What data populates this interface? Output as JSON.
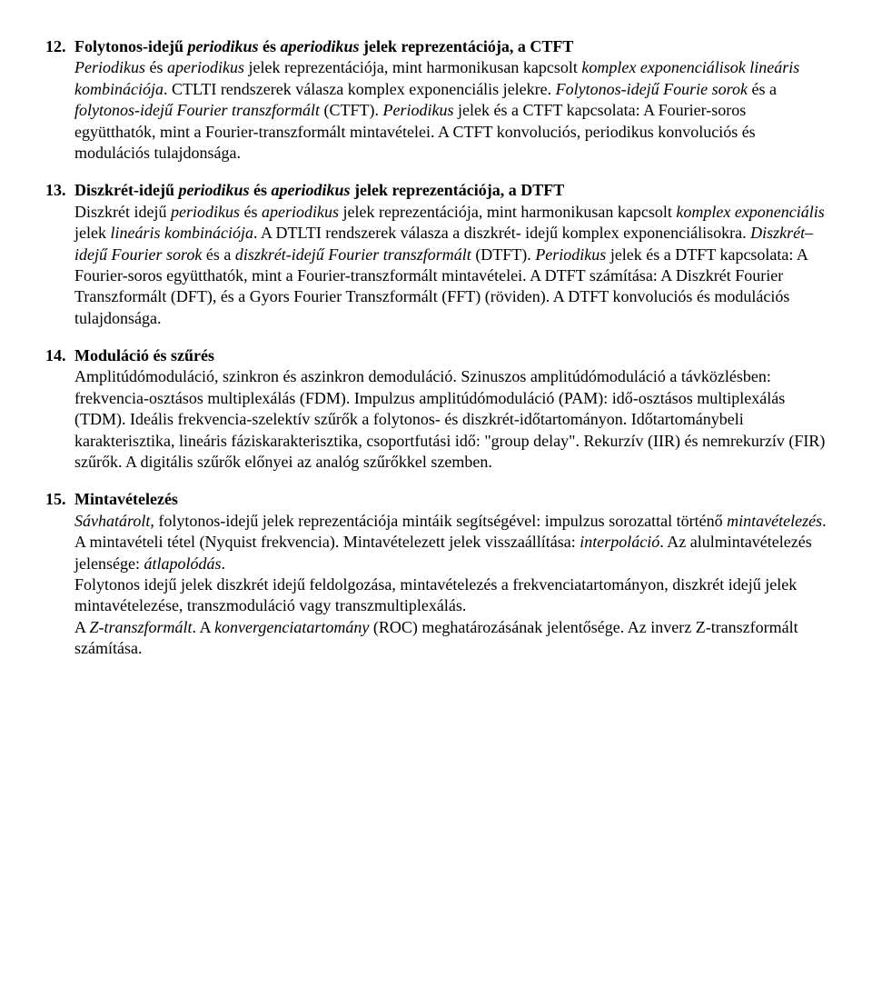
{
  "items": [
    {
      "num": "12.",
      "title_parts": [
        {
          "t": "Folytonos-idejű ",
          "b": true,
          "i": false
        },
        {
          "t": "periodikus",
          "b": true,
          "i": true
        },
        {
          "t": " és ",
          "b": true,
          "i": false
        },
        {
          "t": "aperiodikus",
          "b": true,
          "i": true
        },
        {
          "t": " jelek reprezentációja, a CTFT",
          "b": true,
          "i": false
        }
      ],
      "body_parts": [
        {
          "t": "Periodikus",
          "i": true
        },
        {
          "t": " és "
        },
        {
          "t": "aperiodikus",
          "i": true
        },
        {
          "t": " jelek reprezentációja, mint harmonikusan kapcsolt "
        },
        {
          "t": "komplex exponenciálisok ",
          "i": true
        },
        {
          "t": "lineáris kombinációja",
          "i": true
        },
        {
          "t": ". CTLTI rendszerek válasza komplex exponenciális jelekre. "
        },
        {
          "t": "Folytonos-idejű Fourie sorok",
          "i": true
        },
        {
          "t": " és a "
        },
        {
          "t": "folytonos-idejű Fourier transzformált",
          "i": true
        },
        {
          "t": " (CTFT). "
        },
        {
          "t": "Periodikus",
          "i": true
        },
        {
          "t": " jelek és a CTFT kapcsolata: A Fourier-soros együtthatók, mint a Fourier-transzformált mintavételei. A CTFT konvoluciós, periodikus konvoluciós és modulációs tulajdonsága."
        }
      ]
    },
    {
      "num": "13.",
      "title_parts": [
        {
          "t": "Diszkrét-idejű ",
          "b": true,
          "i": false
        },
        {
          "t": "periodikus",
          "b": true,
          "i": true
        },
        {
          "t": " és ",
          "b": true,
          "i": false
        },
        {
          "t": "aperiodikus",
          "b": true,
          "i": true
        },
        {
          "t": " jelek reprezentációja, a DTFT",
          "b": true,
          "i": false
        }
      ],
      "body_parts": [
        {
          "t": "Diszkrét idejű "
        },
        {
          "t": "periodikus",
          "i": true
        },
        {
          "t": " és "
        },
        {
          "t": "aperiodikus",
          "i": true
        },
        {
          "t": " jelek reprezentációja, mint harmonikusan kapcsolt "
        },
        {
          "t": "komplex exponenciális",
          "i": true
        },
        {
          "t": " jelek "
        },
        {
          "t": "lineáris kombinációja",
          "i": true
        },
        {
          "t": ". A DTLTI rendszerek válasza a diszkrét- idejű komplex exponenciálisokra. "
        },
        {
          "t": "Diszkrét–idejű Fourier sorok",
          "i": true
        },
        {
          "t": " és a "
        },
        {
          "t": "diszkrét-idejű Fourier transzformált",
          "i": true
        },
        {
          "t": " (DTFT). "
        },
        {
          "t": "Periodikus",
          "i": true
        },
        {
          "t": " jelek és a DTFT kapcsolata: A Fourier-soros együtthatók, mint a Fourier-transzformált mintavételei. A DTFT számítása: A Diszkrét Fourier Transzformált (DFT), és a Gyors Fourier Transzformált (FFT) (röviden). A DTFT konvoluciós és modulációs tulajdonsága."
        }
      ]
    },
    {
      "num": "14.",
      "title_parts": [
        {
          "t": "Moduláció és szűrés",
          "b": true,
          "i": false
        }
      ],
      "body_parts": [
        {
          "t": "Amplitúdómoduláció, szinkron és aszinkron demoduláció. Szinuszos amplitúdómoduláció a távközlésben: frekvencia-osztásos multiplexálás (FDM). Impulzus amplitúdómoduláció (PAM): idő-osztásos multiplexálás (TDM). Ideális frekvencia-szelektív szűrők a folytonos- és diszkrét-időtartományon. Időtartománybeli karakterisztika, lineáris fáziskarakterisztika, csoportfutási idő: \"group delay\". Rekurzív (IIR) és nemrekurzív (FIR) szűrők. A digitális szűrők előnyei az analóg szűrőkkel szemben."
        }
      ]
    },
    {
      "num": "15.",
      "title_parts": [
        {
          "t": "Mintavételezés",
          "b": true,
          "i": false
        }
      ],
      "body_parts": [
        {
          "t": "Sávhatárolt",
          "i": true
        },
        {
          "t": ", folytonos-idejű jelek reprezentációja mintáik segítségével: impulzus sorozattal történő "
        },
        {
          "t": "mintavételezés",
          "i": true
        },
        {
          "t": ". A mintavételi tétel (Nyquist frekvencia). Mintavételezett jelek visszaállítása: "
        },
        {
          "t": "interpoláció",
          "i": true
        },
        {
          "t": ". Az alulmintavételezés jelensége: "
        },
        {
          "t": "átlapolódás",
          "i": true
        },
        {
          "t": "."
        },
        {
          "t": "\n"
        },
        {
          "t": "Folytonos idejű jelek diszkrét idejű feldolgozása, mintavételezés a frekvenciatartományon, diszkrét idejű jelek mintavételezése, transzmoduláció vagy transzmultiplexálás."
        },
        {
          "t": "\n"
        },
        {
          "t": "A "
        },
        {
          "t": "Z-transzformált",
          "i": true
        },
        {
          "t": ". A "
        },
        {
          "t": "konvergenciatartomány",
          "i": true
        },
        {
          "t": " (ROC) meghatározásának jelentősége. Az inverz Z-transzformált számítása."
        }
      ]
    }
  ]
}
